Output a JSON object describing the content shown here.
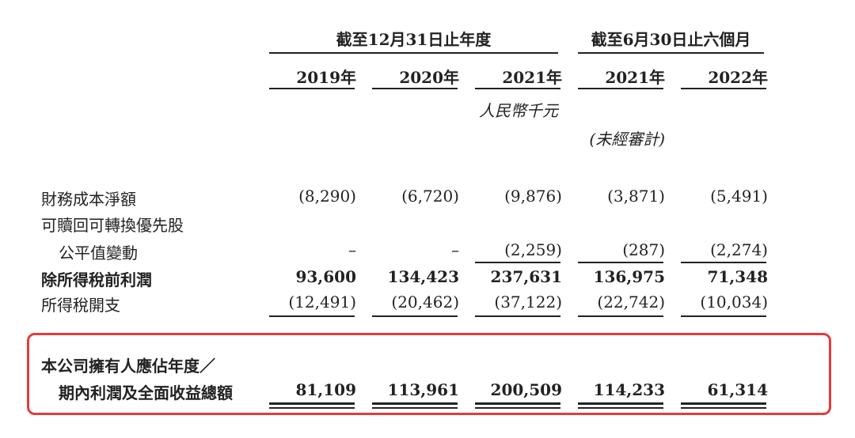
{
  "header": {
    "group_fy": "截至12月31日止年度",
    "group_h1": "截至6月30日止六個月",
    "years": [
      "2019年",
      "2020年",
      "2021年",
      "2021年",
      "2022年"
    ],
    "unit": "人民幣千元",
    "unaudited": "(未經審計)"
  },
  "rows": [
    {
      "label": "財務成本淨額",
      "values": [
        "(8,290)",
        "(6,720)",
        "(9,876)",
        "(3,871)",
        "(5,491)"
      ]
    },
    {
      "label": "可贖回可轉換優先股",
      "values": []
    },
    {
      "label": "公平值變動",
      "values": [
        "–",
        "–",
        "(2,259)",
        "(287)",
        "(2,274)"
      ]
    },
    {
      "label": "除所得稅前利潤",
      "values": [
        "93,600",
        "134,423",
        "237,631",
        "136,975",
        "71,348"
      ]
    },
    {
      "label": "所得稅開支",
      "values": [
        "(12,491)",
        "(20,462)",
        "(37,122)",
        "(22,742)",
        "(10,034)"
      ]
    }
  ],
  "total": {
    "label_line1": "本公司擁有人應佔年度／",
    "label_line2": "期內利潤及全面收益總額",
    "values": [
      "81,109",
      "113,961",
      "200,509",
      "114,233",
      "61,314"
    ]
  },
  "colors": {
    "highlight_border": "#e53b3b",
    "text": "#222222"
  }
}
